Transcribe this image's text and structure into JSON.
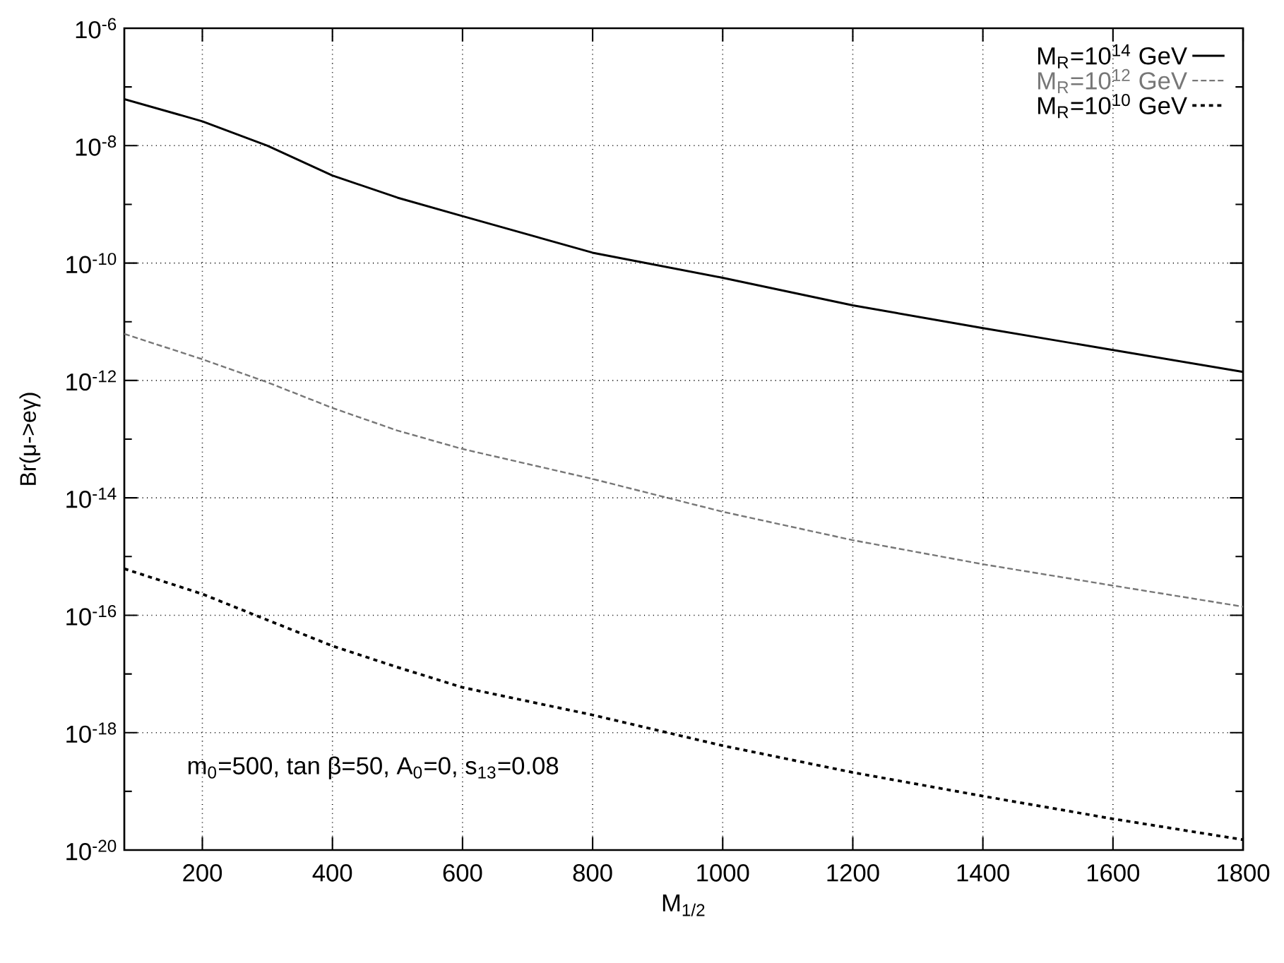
{
  "chart_data": {
    "type": "line",
    "xlabel": "M$_{1/2}$",
    "ylabel": "Br(μ->eγ)",
    "x": [
      80,
      200,
      300,
      400,
      500,
      600,
      800,
      1000,
      1200,
      1400,
      1600,
      1800
    ],
    "series": [
      {
        "name": "M$_{R}$=10$^{14}$ GeV",
        "color": "#000000",
        "line_style": "solid",
        "values": [
          6.2e-08,
          2.6e-08,
          1e-08,
          3.1e-09,
          1.3e-09,
          6.3e-10,
          1.5e-10,
          5.6e-11,
          1.9e-11,
          7.8e-12,
          3.3e-12,
          1.4e-12
        ]
      },
      {
        "name": "M$_{R}$=10$^{12}$ GeV",
        "color": "#777777",
        "line_style": "dashed",
        "values": [
          6.2e-12,
          2.3e-12,
          9.3e-13,
          3.4e-13,
          1.4e-13,
          6.8e-14,
          2.1e-14,
          5.8e-15,
          1.9e-15,
          7.4e-16,
          3.2e-16,
          1.4e-16
        ]
      },
      {
        "name": "M$_{R}$=10$^{10}$ GeV",
        "color": "#000000",
        "line_style": "dotted",
        "values": [
          6.2e-16,
          2.3e-16,
          8.3e-17,
          3e-17,
          1.3e-17,
          5.9e-18,
          2e-18,
          6e-19,
          2.1e-19,
          8.3e-20,
          3.4e-20,
          1.5e-20
        ]
      }
    ],
    "annotations": [
      "m$_{0}$=500, tan β=50, A$_{0}$=0, s$_{13}$=0.08"
    ],
    "log": "y",
    "grid": true,
    "legend": "top right",
    "marker": "none",
    "xlim": [
      80,
      1800
    ],
    "xticks": [
      200,
      400,
      600,
      800,
      1000,
      1200,
      1400,
      1600,
      1800
    ],
    "ylim": [
      1e-20,
      1e-06
    ],
    "yticks": [
      {
        "value": 1e-20,
        "label": "10$^{-20}$"
      },
      {
        "value": 1e-19,
        "label": null
      },
      {
        "value": 1e-18,
        "label": "10$^{-18}$"
      },
      {
        "value": 1e-17,
        "label": null
      },
      {
        "value": 1e-16,
        "label": "10$^{-16}$"
      },
      {
        "value": 1e-15,
        "label": null
      },
      {
        "value": 1e-14,
        "label": "10$^{-14}$"
      },
      {
        "value": 1e-13,
        "label": null
      },
      {
        "value": 1e-12,
        "label": "10$^{-12}$"
      },
      {
        "value": 1e-11,
        "label": null
      },
      {
        "value": 1e-10,
        "label": "10$^{-10}$"
      },
      {
        "value": 1e-09,
        "label": null
      },
      {
        "value": 1e-08,
        "label": "10$^{-8}$"
      },
      {
        "value": 1e-07,
        "label": null
      },
      {
        "value": 1e-06,
        "label": "10$^{-6}$"
      }
    ]
  }
}
